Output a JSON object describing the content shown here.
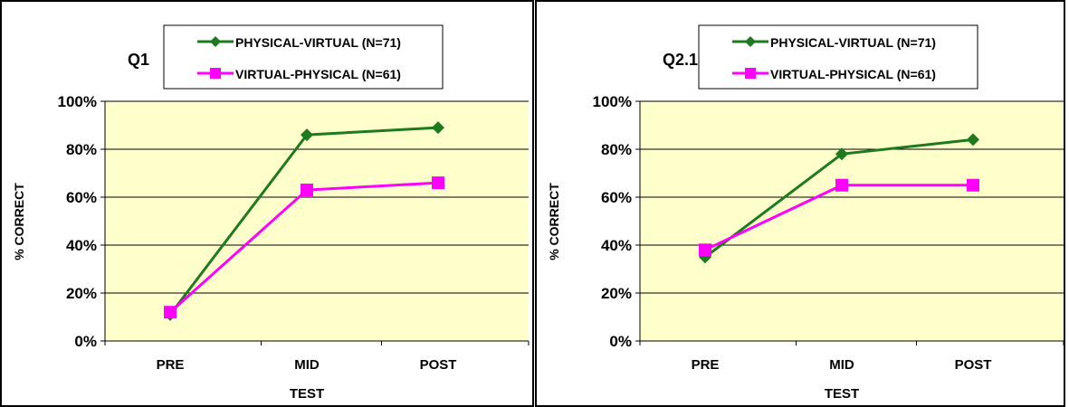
{
  "chart_data": [
    {
      "type": "line",
      "title": "Q1",
      "xlabel": "TEST",
      "ylabel": "% CORRECT",
      "categories": [
        "PRE",
        "MID",
        "POST"
      ],
      "yticks": [
        "0%",
        "20%",
        "40%",
        "60%",
        "80%",
        "100%"
      ],
      "ylim": [
        0,
        1
      ],
      "grid": true,
      "legend_position": "top",
      "plot_background": "#ffffcc",
      "series": [
        {
          "name": "PHYSICAL-VIRTUAL (N=71)",
          "values": [
            0.11,
            0.86,
            0.89
          ],
          "color": "#1e7a1e",
          "marker": "diamond"
        },
        {
          "name": "VIRTUAL-PHYSICAL (N=61)",
          "values": [
            0.12,
            0.63,
            0.66
          ],
          "color": "#ff00ff",
          "marker": "square"
        }
      ]
    },
    {
      "type": "line",
      "title": "Q2.1",
      "xlabel": "TEST",
      "ylabel": "% CORRECT",
      "categories": [
        "PRE",
        "MID",
        "POST"
      ],
      "yticks": [
        "0%",
        "20%",
        "40%",
        "60%",
        "80%",
        "100%"
      ],
      "ylim": [
        0,
        1
      ],
      "grid": true,
      "legend_position": "top",
      "plot_background": "#ffffcc",
      "series": [
        {
          "name": "PHYSICAL-VIRTUAL (N=71)",
          "values": [
            0.35,
            0.78,
            0.84
          ],
          "color": "#1e7a1e",
          "marker": "diamond"
        },
        {
          "name": "VIRTUAL-PHYSICAL (N=61)",
          "values": [
            0.38,
            0.65,
            0.65
          ],
          "color": "#ff00ff",
          "marker": "square"
        }
      ]
    }
  ]
}
